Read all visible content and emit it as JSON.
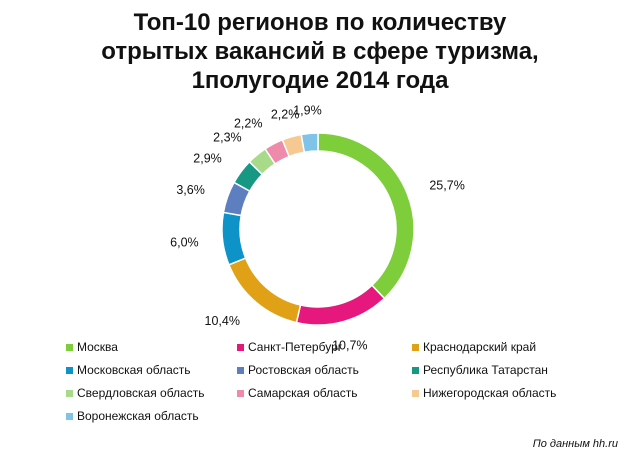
{
  "title_lines": [
    "Топ-10 регионов по количеству",
    "отрытых вакансий в сфере туризма,",
    "1полугодие 2014 года"
  ],
  "source": "По данным hh.ru",
  "chart_data": {
    "type": "pie",
    "donut": true,
    "title": "Топ-10 регионов по количеству отрытых вакансий в сфере туризма, 1полугодие 2014 года",
    "legend_position": "bottom",
    "categories": [
      "Москва",
      "Санкт-Петербург",
      "Краснодарский край",
      "Московская область",
      "Ростовская область",
      "Республика Татарстан",
      "Свердловская область",
      "Самарская область",
      "Нижегородская область",
      "Воронежская область"
    ],
    "values": [
      25.7,
      10.7,
      10.4,
      6.0,
      3.6,
      2.9,
      2.3,
      2.2,
      2.2,
      1.9
    ],
    "labels": [
      "25,7%",
      "10,7%",
      "10,4%",
      "6,0%",
      "3,6%",
      "2,9%",
      "2,3%",
      "2,2%",
      "2,2%",
      "1,9%"
    ],
    "colors": [
      "#7DCE3A",
      "#E6187E",
      "#E0A116",
      "#0E93C9",
      "#5E7FBF",
      "#169883",
      "#A8DB89",
      "#EE8BAA",
      "#F7C992",
      "#7FC3E8"
    ]
  }
}
